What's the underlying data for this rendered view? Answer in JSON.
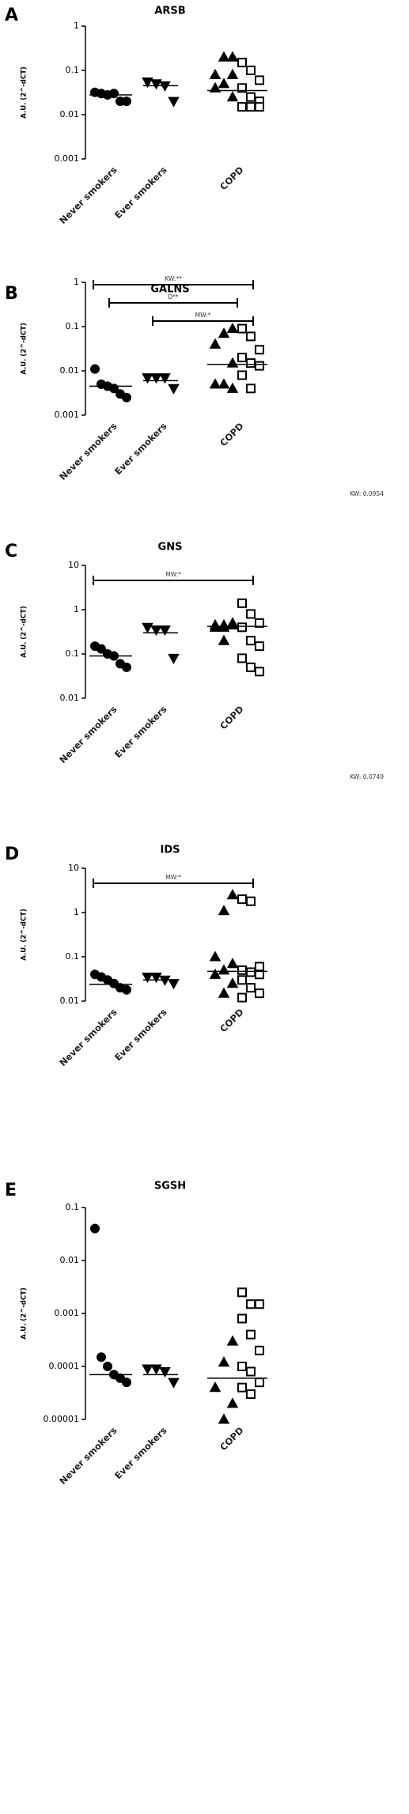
{
  "chart_data": [
    {
      "type": "dot",
      "panel_label": "A",
      "title": "ARSB",
      "y_label": "A.U. (2^-dCT)",
      "log_scale": true,
      "categories": [
        "Never smokers",
        "Ever smokers",
        "COPD"
      ],
      "ylim": [
        0.001,
        1
      ],
      "yticks": [
        0.001,
        0.01,
        0.1,
        1
      ],
      "series": [
        {
          "marker": "circle",
          "color": "#000",
          "fill": "#000",
          "values": [
            [
              0.032,
              0.03,
              0.028,
              0.03,
              0.02,
              0.02
            ],
            [],
            []
          ]
        },
        {
          "marker": "triangle-down",
          "color": "#000",
          "fill": "#000",
          "values": [
            [],
            [
              0.055,
              0.05,
              0.045,
              0.02
            ],
            []
          ]
        },
        {
          "marker": "triangle-up",
          "color": "#000",
          "fill": "#000",
          "values": [
            [],
            [],
            [
              0.2,
              0.2,
              0.08,
              0.08,
              0.05,
              0.04,
              0.025
            ]
          ]
        },
        {
          "marker": "square",
          "color": "#000",
          "fill": "#fff",
          "values": [
            [],
            [],
            [
              0.15,
              0.1,
              0.06,
              0.04,
              0.025,
              0.02,
              0.015,
              0.015,
              0.015
            ]
          ]
        }
      ],
      "medians": [
        0.028,
        0.045,
        0.035
      ],
      "brackets": []
    },
    {
      "type": "dot",
      "panel_label": "B",
      "title": "GALNS",
      "y_label": "A.U. (2^-dCT)",
      "log_scale": true,
      "categories": [
        "Never smokers",
        "Ever smokers",
        "COPD"
      ],
      "ylim": [
        0.001,
        1
      ],
      "yticks": [
        0.001,
        0.01,
        0.1,
        1
      ],
      "series": [
        {
          "marker": "circle",
          "color": "#000",
          "fill": "#000",
          "values": [
            [
              0.011,
              0.005,
              0.0045,
              0.004,
              0.003,
              0.0025
            ],
            [],
            []
          ]
        },
        {
          "marker": "triangle-down",
          "color": "#000",
          "fill": "#000",
          "values": [
            [],
            [
              0.007,
              0.007,
              0.007,
              0.004
            ],
            []
          ]
        },
        {
          "marker": "triangle-up",
          "color": "#000",
          "fill": "#000",
          "values": [
            [],
            [],
            [
              0.09,
              0.07,
              0.04,
              0.015,
              0.005,
              0.005,
              0.004
            ]
          ]
        },
        {
          "marker": "square",
          "color": "#000",
          "fill": "#fff",
          "values": [
            [],
            [],
            [
              0.09,
              0.06,
              0.03,
              0.02,
              0.015,
              0.013,
              0.008,
              0.004
            ]
          ]
        }
      ],
      "medians": [
        0.0045,
        0.006,
        0.014
      ],
      "brackets": [
        {
          "label": "KW:**",
          "from": 0,
          "to": 2
        },
        {
          "label": "D**",
          "from": 0,
          "to": 2
        },
        {
          "label": "MW:*",
          "from": 1,
          "to": 2
        }
      ],
      "note": "KW: 0.0954"
    },
    {
      "type": "dot",
      "panel_label": "C",
      "title": "GNS",
      "y_label": "A.U. (2^-dCT)",
      "log_scale": true,
      "categories": [
        "Never smokers",
        "Ever smokers",
        "COPD"
      ],
      "ylim": [
        0.01,
        10
      ],
      "yticks": [
        0.01,
        0.1,
        1,
        10
      ],
      "series": [
        {
          "marker": "circle",
          "color": "#000",
          "fill": "#000",
          "values": [
            [
              0.15,
              0.13,
              0.1,
              0.09,
              0.06,
              0.05
            ],
            [],
            []
          ]
        },
        {
          "marker": "triangle-down",
          "color": "#000",
          "fill": "#000",
          "values": [
            [],
            [
              0.4,
              0.35,
              0.35,
              0.08
            ],
            []
          ]
        },
        {
          "marker": "triangle-up",
          "color": "#000",
          "fill": "#000",
          "values": [
            [],
            [],
            [
              0.5,
              0.45,
              0.45,
              0.45,
              0.4,
              0.4,
              0.45,
              0.2
            ]
          ]
        },
        {
          "marker": "square",
          "color": "#000",
          "fill": "#fff",
          "values": [
            [],
            [],
            [
              1.4,
              0.8,
              0.5,
              0.4,
              0.2,
              0.15,
              0.08,
              0.05,
              0.04
            ]
          ]
        }
      ],
      "medians": [
        0.09,
        0.3,
        0.42
      ],
      "brackets": [
        {
          "label": "MW:*",
          "from": 0,
          "to": 2
        }
      ],
      "note": "KW: 0.0749"
    },
    {
      "type": "dot",
      "panel_label": "D",
      "title": "IDS",
      "y_label": "A.U. (2^-dCT)",
      "log_scale": true,
      "categories": [
        "Never smokers",
        "Ever smokers",
        "COPD"
      ],
      "ylim": [
        0.01,
        10
      ],
      "yticks": [
        0.01,
        0.1,
        1,
        10
      ],
      "series": [
        {
          "marker": "circle",
          "color": "#000",
          "fill": "#000",
          "values": [
            [
              0.04,
              0.035,
              0.03,
              0.025,
              0.02,
              0.018
            ],
            [],
            []
          ]
        },
        {
          "marker": "triangle-down",
          "color": "#000",
          "fill": "#000",
          "values": [
            [],
            [
              0.035,
              0.035,
              0.03,
              0.025
            ],
            []
          ]
        },
        {
          "marker": "triangle-up",
          "color": "#000",
          "fill": "#000",
          "values": [
            [],
            [],
            [
              2.5,
              1.1,
              0.1,
              0.07,
              0.05,
              0.04,
              0.025,
              0.015
            ]
          ]
        },
        {
          "marker": "square",
          "color": "#000",
          "fill": "#fff",
          "values": [
            [],
            [],
            [
              2,
              1.8,
              0.06,
              0.05,
              0.045,
              0.04,
              0.03,
              0.02,
              0.015,
              0.012
            ]
          ]
        }
      ],
      "medians": [
        0.024,
        0.03,
        0.047
      ],
      "brackets": [
        {
          "label": "MW:*",
          "from": 0,
          "to": 2
        }
      ]
    },
    {
      "type": "dot",
      "panel_label": "E",
      "title": "SGSH",
      "y_label": "A.U. (2^-dCT)",
      "log_scale": true,
      "categories": [
        "Never smokers",
        "Ever smokers",
        "COPD"
      ],
      "ylim": [
        1e-05,
        0.1
      ],
      "yticks": [
        {
          "value": 1e-05,
          "label": "0.00001"
        },
        {
          "value": 0.0001,
          "label": "0.0001"
        },
        0.001,
        0.01,
        0.1
      ],
      "series": [
        {
          "marker": "circle",
          "color": "#000",
          "fill": "#000",
          "values": [
            [
              0.04,
              0.00015,
              0.0001,
              7e-05,
              6e-05,
              5e-05
            ],
            [],
            []
          ]
        },
        {
          "marker": "triangle-down",
          "color": "#000",
          "fill": "#000",
          "values": [
            [],
            [
              9e-05,
              9e-05,
              8e-05,
              5e-05
            ],
            []
          ]
        },
        {
          "marker": "triangle-up",
          "color": "#000",
          "fill": "#000",
          "values": [
            [],
            [],
            [
              0.0003,
              0.00012,
              4e-05,
              2e-05,
              1e-05
            ]
          ]
        },
        {
          "marker": "square",
          "color": "#000",
          "fill": "#fff",
          "values": [
            [],
            [],
            [
              0.0025,
              0.0015,
              0.0015,
              0.0008,
              0.0004,
              0.0002,
              0.0001,
              8e-05,
              5e-05,
              4e-05,
              3e-05
            ]
          ]
        }
      ],
      "medians": [
        7e-05,
        7e-05,
        6e-05
      ],
      "brackets": []
    }
  ]
}
